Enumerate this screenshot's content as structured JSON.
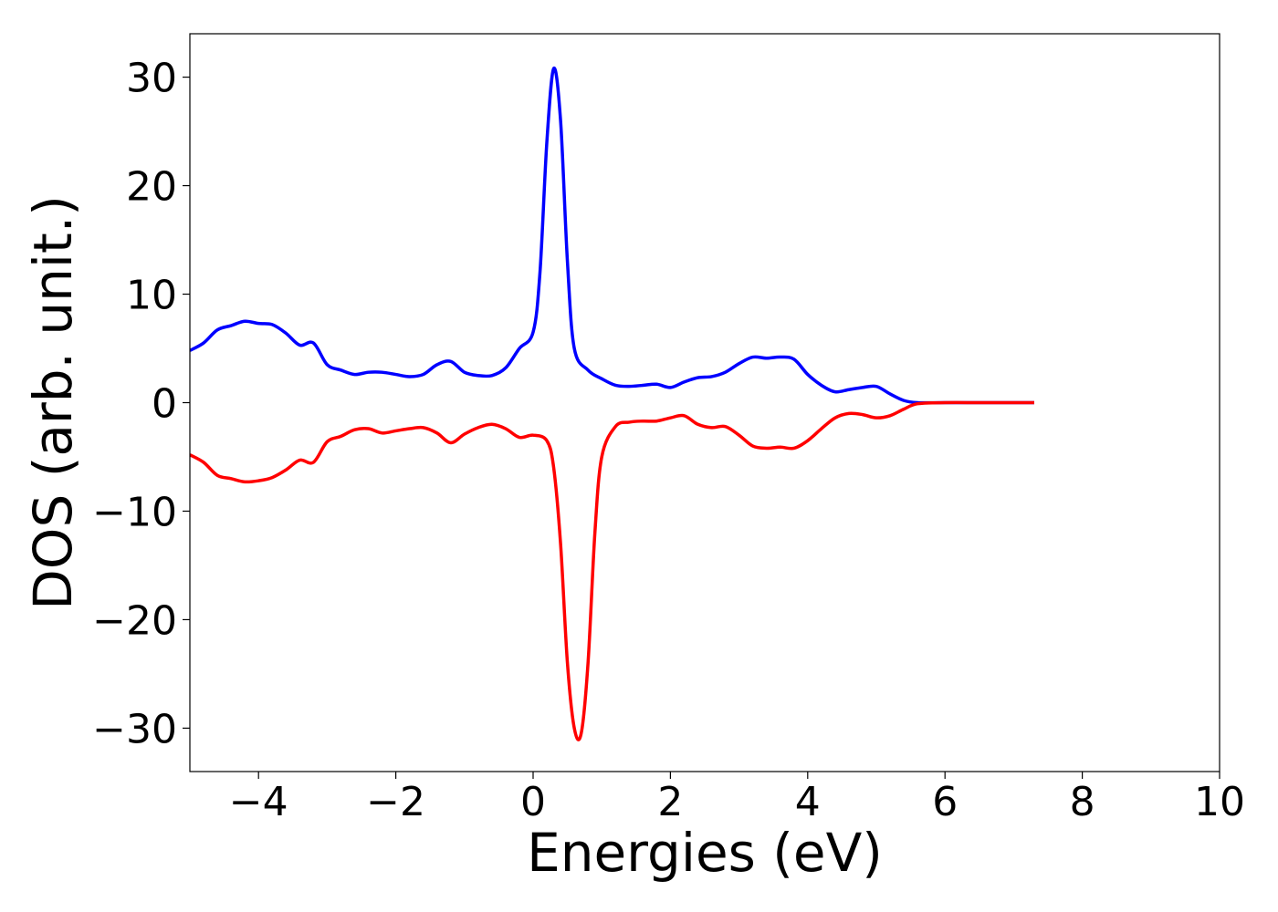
{
  "chart_data": {
    "type": "line",
    "title": "",
    "xlabel": "Energies (eV)",
    "ylabel": "DOS (arb. unit.)",
    "xlim": [
      -5,
      10
    ],
    "ylim": [
      -34,
      34
    ],
    "xticks": [
      -4,
      -2,
      0,
      2,
      4,
      6,
      8,
      10
    ],
    "xtick_labels": [
      "−4",
      "−2",
      "0",
      "2",
      "4",
      "6",
      "8",
      "10"
    ],
    "yticks": [
      -30,
      -20,
      -10,
      0,
      10,
      20,
      30
    ],
    "ytick_labels": [
      "−30",
      "−20",
      "−10",
      "0",
      "10",
      "20",
      "30"
    ],
    "grid": false,
    "legend": "none",
    "series": [
      {
        "color": "#0000ff",
        "x": [
          -5.0,
          -4.8,
          -4.6,
          -4.4,
          -4.2,
          -4.0,
          -3.8,
          -3.6,
          -3.4,
          -3.2,
          -3.0,
          -2.8,
          -2.6,
          -2.4,
          -2.2,
          -2.0,
          -1.8,
          -1.6,
          -1.4,
          -1.2,
          -1.0,
          -0.8,
          -0.6,
          -0.4,
          -0.2,
          0.0,
          0.1,
          0.2,
          0.3,
          0.4,
          0.5,
          0.6,
          0.8,
          1.0,
          1.2,
          1.4,
          1.6,
          1.8,
          2.0,
          2.2,
          2.4,
          2.6,
          2.8,
          3.0,
          3.2,
          3.4,
          3.6,
          3.8,
          4.0,
          4.2,
          4.4,
          4.6,
          4.8,
          5.0,
          5.2,
          5.4,
          5.6,
          6.0,
          6.5,
          7.0,
          7.3
        ],
        "y": [
          4.8,
          5.5,
          6.7,
          7.1,
          7.5,
          7.3,
          7.2,
          6.4,
          5.3,
          5.5,
          3.5,
          3.0,
          2.6,
          2.8,
          2.8,
          2.6,
          2.4,
          2.6,
          3.5,
          3.8,
          2.8,
          2.5,
          2.5,
          3.2,
          5.0,
          6.5,
          12.0,
          24.0,
          30.8,
          26.0,
          13.0,
          5.0,
          3.0,
          2.2,
          1.6,
          1.5,
          1.6,
          1.7,
          1.4,
          1.9,
          2.3,
          2.4,
          2.8,
          3.6,
          4.2,
          4.1,
          4.2,
          4.0,
          2.6,
          1.6,
          1.0,
          1.2,
          1.4,
          1.5,
          0.8,
          0.2,
          0.0,
          0.0,
          0.0,
          0.0,
          0.0
        ]
      },
      {
        "color": "#ff0000",
        "x": [
          -5.0,
          -4.8,
          -4.6,
          -4.4,
          -4.2,
          -4.0,
          -3.8,
          -3.6,
          -3.4,
          -3.2,
          -3.0,
          -2.8,
          -2.6,
          -2.4,
          -2.2,
          -2.0,
          -1.8,
          -1.6,
          -1.4,
          -1.2,
          -1.0,
          -0.8,
          -0.6,
          -0.4,
          -0.2,
          0.0,
          0.2,
          0.3,
          0.4,
          0.5,
          0.6,
          0.7,
          0.8,
          0.9,
          1.0,
          1.2,
          1.4,
          1.6,
          1.8,
          2.0,
          2.2,
          2.4,
          2.6,
          2.8,
          3.0,
          3.2,
          3.4,
          3.6,
          3.8,
          4.0,
          4.2,
          4.4,
          4.6,
          4.8,
          5.0,
          5.2,
          5.4,
          5.6,
          6.0,
          6.5,
          7.0,
          7.3
        ],
        "y": [
          -4.8,
          -5.5,
          -6.7,
          -7.0,
          -7.3,
          -7.2,
          -6.9,
          -6.2,
          -5.3,
          -5.5,
          -3.6,
          -3.1,
          -2.5,
          -2.4,
          -2.8,
          -2.6,
          -2.4,
          -2.3,
          -2.8,
          -3.7,
          -2.9,
          -2.3,
          -2.0,
          -2.4,
          -3.2,
          -3.0,
          -3.5,
          -6.0,
          -13.0,
          -24.0,
          -30.0,
          -30.5,
          -24.0,
          -12.0,
          -5.0,
          -2.2,
          -1.8,
          -1.7,
          -1.7,
          -1.4,
          -1.2,
          -2.0,
          -2.3,
          -2.2,
          -3.0,
          -4.0,
          -4.2,
          -4.1,
          -4.2,
          -3.5,
          -2.4,
          -1.4,
          -1.0,
          -1.1,
          -1.4,
          -1.2,
          -0.6,
          -0.1,
          0.0,
          0.0,
          0.0,
          0.0
        ]
      }
    ]
  }
}
